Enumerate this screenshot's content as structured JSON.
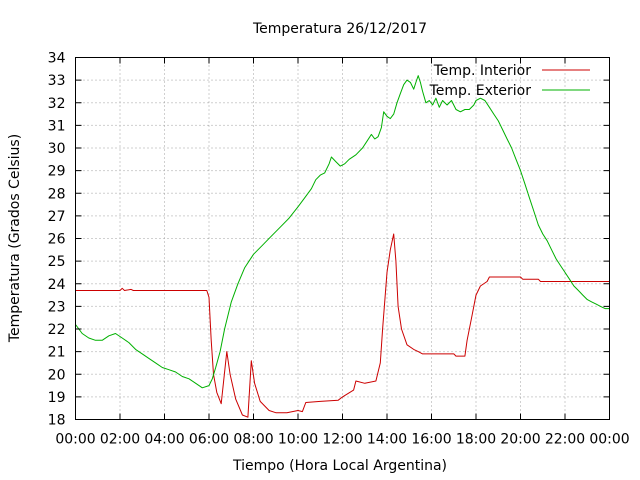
{
  "chart_data": {
    "type": "line",
    "title": "Temperatura 26/12/2017",
    "xlabel": "Tiempo (Hora Local Argentina)",
    "ylabel": "Temperatura (Grados Celsius)",
    "x_unit": "hour of day",
    "xlim": [
      0,
      24
    ],
    "ylim": [
      18,
      34
    ],
    "x_ticks": [
      0,
      2,
      4,
      6,
      8,
      10,
      12,
      14,
      16,
      18,
      20,
      22,
      24
    ],
    "x_tick_labels": [
      "00:00",
      "02:00",
      "04:00",
      "06:00",
      "08:00",
      "10:00",
      "12:00",
      "14:00",
      "16:00",
      "18:00",
      "20:00",
      "22:00",
      "00:00"
    ],
    "y_ticks": [
      18,
      19,
      20,
      21,
      22,
      23,
      24,
      25,
      26,
      27,
      28,
      29,
      30,
      31,
      32,
      33,
      34
    ],
    "grid": true,
    "legend_position": "top-right",
    "series": [
      {
        "name": "Temp. Interior",
        "color": "#cc0000",
        "points": [
          [
            0,
            23.7
          ],
          [
            2.0,
            23.7
          ],
          [
            2.1,
            23.8
          ],
          [
            2.2,
            23.7
          ],
          [
            2.5,
            23.75
          ],
          [
            2.6,
            23.7
          ],
          [
            4.0,
            23.7
          ],
          [
            5.9,
            23.7
          ],
          [
            6.0,
            23.4
          ],
          [
            6.1,
            21.5
          ],
          [
            6.2,
            20.0
          ],
          [
            6.35,
            19.2
          ],
          [
            6.55,
            18.7
          ],
          [
            6.8,
            21.0
          ],
          [
            6.95,
            20.0
          ],
          [
            7.2,
            18.9
          ],
          [
            7.5,
            18.2
          ],
          [
            7.75,
            18.1
          ],
          [
            7.9,
            20.6
          ],
          [
            8.05,
            19.6
          ],
          [
            8.3,
            18.8
          ],
          [
            8.7,
            18.4
          ],
          [
            9.0,
            18.3
          ],
          [
            9.5,
            18.3
          ],
          [
            10.0,
            18.4
          ],
          [
            10.2,
            18.35
          ],
          [
            10.35,
            18.75
          ],
          [
            11.0,
            18.8
          ],
          [
            11.8,
            18.85
          ],
          [
            12.0,
            19.0
          ],
          [
            12.5,
            19.3
          ],
          [
            12.6,
            19.7
          ],
          [
            13.0,
            19.6
          ],
          [
            13.5,
            19.7
          ],
          [
            13.7,
            20.5
          ],
          [
            13.8,
            22.0
          ],
          [
            14.0,
            24.5
          ],
          [
            14.15,
            25.5
          ],
          [
            14.3,
            26.2
          ],
          [
            14.4,
            25.0
          ],
          [
            14.5,
            23.0
          ],
          [
            14.65,
            22.0
          ],
          [
            14.9,
            21.3
          ],
          [
            15.2,
            21.1
          ],
          [
            15.4,
            21.0
          ],
          [
            15.6,
            20.9
          ],
          [
            16.5,
            20.9
          ],
          [
            17.0,
            20.9
          ],
          [
            17.1,
            20.8
          ],
          [
            17.5,
            20.8
          ],
          [
            17.6,
            21.5
          ],
          [
            17.8,
            22.5
          ],
          [
            18.0,
            23.5
          ],
          [
            18.2,
            23.9
          ],
          [
            18.5,
            24.1
          ],
          [
            18.6,
            24.3
          ],
          [
            20.0,
            24.3
          ],
          [
            20.1,
            24.2
          ],
          [
            20.8,
            24.2
          ],
          [
            20.9,
            24.1
          ],
          [
            24.0,
            24.1
          ]
        ]
      },
      {
        "name": "Temp. Exterior",
        "color": "#00b000",
        "points": [
          [
            0,
            22.2
          ],
          [
            0.3,
            21.8
          ],
          [
            0.6,
            21.6
          ],
          [
            0.9,
            21.5
          ],
          [
            1.2,
            21.5
          ],
          [
            1.5,
            21.7
          ],
          [
            1.8,
            21.8
          ],
          [
            2.1,
            21.6
          ],
          [
            2.4,
            21.4
          ],
          [
            2.7,
            21.1
          ],
          [
            3.0,
            20.9
          ],
          [
            3.3,
            20.7
          ],
          [
            3.6,
            20.5
          ],
          [
            3.9,
            20.3
          ],
          [
            4.2,
            20.2
          ],
          [
            4.5,
            20.1
          ],
          [
            4.8,
            19.9
          ],
          [
            5.1,
            19.8
          ],
          [
            5.4,
            19.6
          ],
          [
            5.7,
            19.4
          ],
          [
            6.0,
            19.5
          ],
          [
            6.15,
            19.8
          ],
          [
            6.3,
            20.3
          ],
          [
            6.5,
            21.0
          ],
          [
            6.7,
            22.0
          ],
          [
            7.0,
            23.2
          ],
          [
            7.3,
            24.0
          ],
          [
            7.6,
            24.7
          ],
          [
            8.0,
            25.3
          ],
          [
            8.4,
            25.7
          ],
          [
            8.8,
            26.1
          ],
          [
            9.2,
            26.5
          ],
          [
            9.6,
            26.9
          ],
          [
            10.0,
            27.4
          ],
          [
            10.3,
            27.8
          ],
          [
            10.6,
            28.2
          ],
          [
            10.8,
            28.6
          ],
          [
            11.0,
            28.8
          ],
          [
            11.2,
            28.9
          ],
          [
            11.4,
            29.3
          ],
          [
            11.5,
            29.6
          ],
          [
            11.7,
            29.4
          ],
          [
            11.9,
            29.2
          ],
          [
            12.1,
            29.3
          ],
          [
            12.3,
            29.5
          ],
          [
            12.6,
            29.7
          ],
          [
            12.9,
            30.0
          ],
          [
            13.1,
            30.3
          ],
          [
            13.3,
            30.6
          ],
          [
            13.45,
            30.4
          ],
          [
            13.6,
            30.5
          ],
          [
            13.75,
            30.9
          ],
          [
            13.85,
            31.6
          ],
          [
            14.0,
            31.4
          ],
          [
            14.15,
            31.3
          ],
          [
            14.3,
            31.5
          ],
          [
            14.45,
            32.0
          ],
          [
            14.6,
            32.4
          ],
          [
            14.75,
            32.8
          ],
          [
            14.9,
            33.0
          ],
          [
            15.05,
            32.9
          ],
          [
            15.2,
            32.6
          ],
          [
            15.3,
            32.9
          ],
          [
            15.4,
            33.2
          ],
          [
            15.5,
            32.9
          ],
          [
            15.6,
            32.5
          ],
          [
            15.75,
            32.0
          ],
          [
            15.9,
            32.1
          ],
          [
            16.05,
            31.9
          ],
          [
            16.2,
            32.2
          ],
          [
            16.35,
            31.8
          ],
          [
            16.5,
            32.1
          ],
          [
            16.7,
            31.9
          ],
          [
            16.9,
            32.1
          ],
          [
            17.1,
            31.7
          ],
          [
            17.3,
            31.6
          ],
          [
            17.5,
            31.7
          ],
          [
            17.7,
            31.7
          ],
          [
            17.9,
            31.9
          ],
          [
            18.0,
            32.1
          ],
          [
            18.2,
            32.2
          ],
          [
            18.4,
            32.1
          ],
          [
            18.6,
            31.8
          ],
          [
            18.8,
            31.5
          ],
          [
            19.0,
            31.2
          ],
          [
            19.2,
            30.8
          ],
          [
            19.4,
            30.4
          ],
          [
            19.6,
            30.0
          ],
          [
            19.8,
            29.5
          ],
          [
            20.0,
            29.0
          ],
          [
            20.2,
            28.4
          ],
          [
            20.4,
            27.8
          ],
          [
            20.6,
            27.2
          ],
          [
            20.8,
            26.6
          ],
          [
            21.0,
            26.2
          ],
          [
            21.2,
            25.9
          ],
          [
            21.4,
            25.5
          ],
          [
            21.6,
            25.1
          ],
          [
            21.8,
            24.8
          ],
          [
            22.0,
            24.5
          ],
          [
            22.2,
            24.2
          ],
          [
            22.4,
            23.9
          ],
          [
            22.6,
            23.7
          ],
          [
            22.8,
            23.5
          ],
          [
            23.0,
            23.3
          ],
          [
            23.2,
            23.2
          ],
          [
            23.4,
            23.1
          ],
          [
            23.6,
            23.0
          ],
          [
            23.8,
            22.9
          ],
          [
            24.0,
            22.9
          ]
        ]
      }
    ]
  }
}
